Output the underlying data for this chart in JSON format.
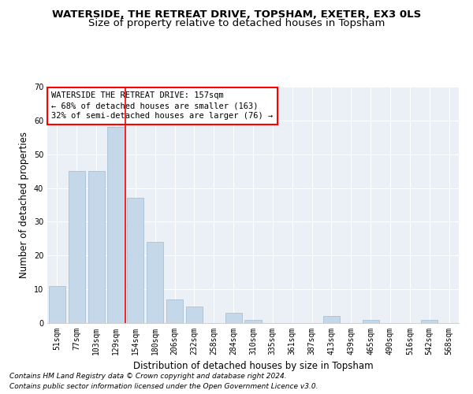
{
  "title": "WATERSIDE, THE RETREAT DRIVE, TOPSHAM, EXETER, EX3 0LS",
  "subtitle": "Size of property relative to detached houses in Topsham",
  "xlabel": "Distribution of detached houses by size in Topsham",
  "ylabel": "Number of detached properties",
  "categories": [
    "51sqm",
    "77sqm",
    "103sqm",
    "129sqm",
    "154sqm",
    "180sqm",
    "206sqm",
    "232sqm",
    "258sqm",
    "284sqm",
    "310sqm",
    "335sqm",
    "361sqm",
    "387sqm",
    "413sqm",
    "439sqm",
    "465sqm",
    "490sqm",
    "516sqm",
    "542sqm",
    "568sqm"
  ],
  "values": [
    11,
    45,
    45,
    58,
    37,
    24,
    7,
    5,
    0,
    3,
    1,
    0,
    0,
    0,
    2,
    0,
    1,
    0,
    0,
    1,
    0
  ],
  "bar_color": "#c5d8ea",
  "bar_edge_color": "#a8c0d4",
  "red_line_x": 3.5,
  "annotation_line1": "WATERSIDE THE RETREAT DRIVE: 157sqm",
  "annotation_line2": "← 68% of detached houses are smaller (163)",
  "annotation_line3": "32% of semi-detached houses are larger (76) →",
  "footnote1": "Contains HM Land Registry data © Crown copyright and database right 2024.",
  "footnote2": "Contains public sector information licensed under the Open Government Licence v3.0.",
  "ylim": [
    0,
    70
  ],
  "yticks": [
    0,
    10,
    20,
    30,
    40,
    50,
    60,
    70
  ],
  "background_color": "#eaf0f6",
  "title_fontsize": 9.5,
  "subtitle_fontsize": 9.5,
  "axis_label_fontsize": 8.5,
  "tick_fontsize": 7,
  "annotation_fontsize": 7.5,
  "footnote_fontsize": 6.5
}
